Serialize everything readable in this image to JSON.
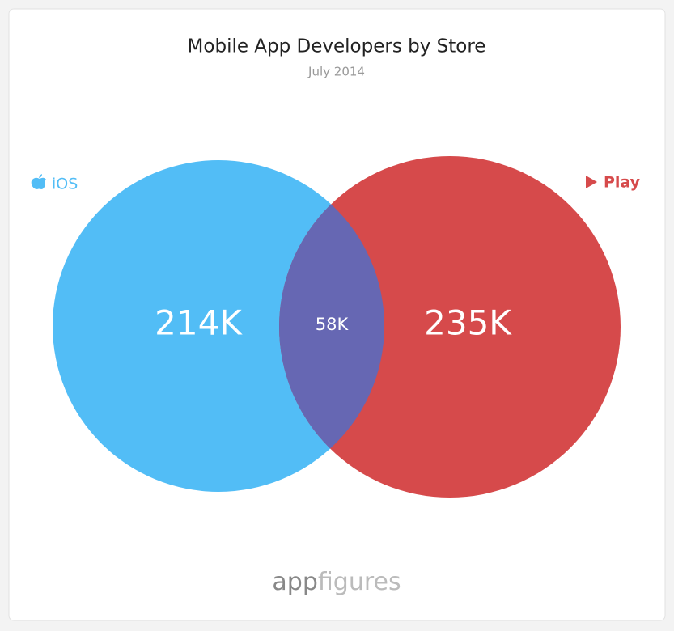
{
  "chart_data": {
    "type": "venn",
    "title": "Mobile App Developers by Store",
    "subtitle": "July 2014",
    "series": [
      {
        "name": "iOS",
        "color": "#52bdf6",
        "values": [
          214000
        ],
        "value_labels": [
          "214K"
        ]
      },
      {
        "name": "Play",
        "color": "#d64a4b",
        "values": [
          235000
        ],
        "value_labels": [
          "235K"
        ]
      }
    ],
    "overlap": {
      "color": "#6667b3",
      "values": [
        58000
      ],
      "value_labels": [
        "58K"
      ]
    },
    "watermark": [
      "app",
      "figures"
    ]
  }
}
